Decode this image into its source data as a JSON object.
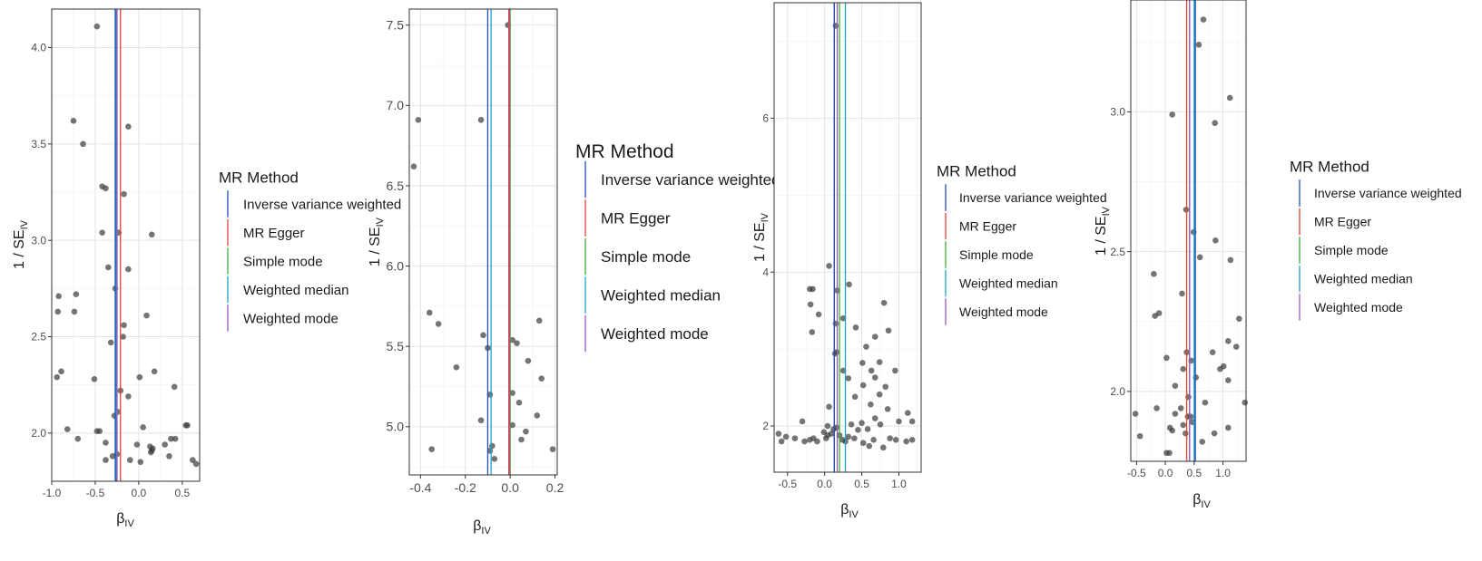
{
  "legend": {
    "title": "MR Method",
    "entries": [
      {
        "name": "Inverse variance weighted",
        "color": "#1f4fbf"
      },
      {
        "name": "MR Egger",
        "color": "#e0453a"
      },
      {
        "name": "Simple mode",
        "color": "#3fae3c"
      },
      {
        "name": "Weighted median",
        "color": "#1ea1c8"
      },
      {
        "name": "Weighted mode",
        "color": "#9b57c2"
      }
    ]
  },
  "axes": {
    "y_prefix": "1 / SE",
    "y_sub": "IV",
    "x_prefix": "β",
    "x_sub": "IV"
  },
  "chart_data": [
    {
      "type": "scatter",
      "xlim": [
        -1.0,
        0.7
      ],
      "ylim": [
        1.75,
        4.2
      ],
      "xticks": [
        "-1.0",
        "-0.5",
        "0.0",
        "0.5"
      ],
      "xtick_values": [
        -1.0,
        -0.5,
        0.0,
        0.5
      ],
      "yticks": [
        "2.0",
        "2.5",
        "3.0",
        "3.5",
        "4.0"
      ],
      "ytick_values": [
        2.0,
        2.5,
        3.0,
        3.5,
        4.0
      ],
      "grid": true,
      "method_lines": {
        "Inverse variance weighted": -0.27,
        "MR Egger": -0.21,
        "Simple mode": -0.25,
        "Weighted median": -0.26,
        "Weighted mode": -0.25
      },
      "points": [
        [
          -0.48,
          4.11
        ],
        [
          -0.75,
          3.62
        ],
        [
          -0.64,
          3.5
        ],
        [
          -0.12,
          3.59
        ],
        [
          -0.42,
          3.28
        ],
        [
          -0.38,
          3.27
        ],
        [
          -0.17,
          3.24
        ],
        [
          -0.42,
          3.04
        ],
        [
          -0.23,
          3.04
        ],
        [
          0.15,
          3.03
        ],
        [
          -0.35,
          2.86
        ],
        [
          -0.12,
          2.85
        ],
        [
          -0.27,
          2.75
        ],
        [
          -0.92,
          2.71
        ],
        [
          -0.72,
          2.72
        ],
        [
          -0.93,
          2.63
        ],
        [
          -0.74,
          2.63
        ],
        [
          0.09,
          2.61
        ],
        [
          -0.17,
          2.56
        ],
        [
          -0.18,
          2.5
        ],
        [
          -0.32,
          2.47
        ],
        [
          -0.89,
          2.32
        ],
        [
          0.18,
          2.32
        ],
        [
          -0.94,
          2.29
        ],
        [
          -0.51,
          2.28
        ],
        [
          0.01,
          2.29
        ],
        [
          0.41,
          2.24
        ],
        [
          -0.21,
          2.22
        ],
        [
          -0.12,
          2.19
        ],
        [
          -0.24,
          2.11
        ],
        [
          -0.28,
          2.09
        ],
        [
          0.05,
          2.03
        ],
        [
          0.54,
          2.04
        ],
        [
          0.56,
          2.04
        ],
        [
          -0.82,
          2.02
        ],
        [
          -0.48,
          2.01
        ],
        [
          -0.45,
          2.01
        ],
        [
          -0.7,
          1.97
        ],
        [
          0.37,
          1.97
        ],
        [
          0.42,
          1.97
        ],
        [
          -0.38,
          1.95
        ],
        [
          -0.02,
          1.94
        ],
        [
          0.3,
          1.94
        ],
        [
          0.13,
          1.93
        ],
        [
          0.16,
          1.92
        ],
        [
          0.14,
          1.9
        ],
        [
          0.15,
          1.91
        ],
        [
          -0.25,
          1.89
        ],
        [
          -0.1,
          1.86
        ],
        [
          0.35,
          1.88
        ],
        [
          -0.3,
          1.88
        ],
        [
          -0.38,
          1.86
        ],
        [
          0.02,
          1.85
        ],
        [
          0.62,
          1.86
        ],
        [
          0.66,
          1.84
        ]
      ]
    },
    {
      "type": "scatter",
      "xlim": [
        -0.45,
        0.21
      ],
      "ylim": [
        4.7,
        7.6
      ],
      "xticks": [
        "-0.4",
        "-0.2",
        "0.0",
        "0.2"
      ],
      "xtick_values": [
        -0.4,
        -0.2,
        0.0,
        0.2
      ],
      "yticks": [
        "5.0",
        "5.5",
        "6.0",
        "6.5",
        "7.0",
        "7.5"
      ],
      "ytick_values": [
        5.0,
        5.5,
        6.0,
        6.5,
        7.0,
        7.5
      ],
      "grid": true,
      "method_lines": {
        "Inverse variance weighted": -0.1,
        "MR Egger": -0.003,
        "Simple mode": 0.0,
        "Weighted median": -0.085,
        "Weighted mode": -0.006
      },
      "points": [
        [
          -0.01,
          7.5
        ],
        [
          -0.41,
          6.91
        ],
        [
          -0.13,
          6.91
        ],
        [
          -0.43,
          6.62
        ],
        [
          -0.36,
          5.71
        ],
        [
          -0.32,
          5.64
        ],
        [
          0.13,
          5.66
        ],
        [
          -0.12,
          5.57
        ],
        [
          -0.1,
          5.49
        ],
        [
          0.01,
          5.54
        ],
        [
          0.03,
          5.52
        ],
        [
          0.08,
          5.41
        ],
        [
          -0.24,
          5.37
        ],
        [
          0.14,
          5.3
        ],
        [
          -0.09,
          5.2
        ],
        [
          0.01,
          5.21
        ],
        [
          0.04,
          5.15
        ],
        [
          0.12,
          5.07
        ],
        [
          -0.13,
          5.04
        ],
        [
          0.01,
          5.01
        ],
        [
          0.07,
          4.97
        ],
        [
          0.05,
          4.92
        ],
        [
          -0.35,
          4.86
        ],
        [
          -0.09,
          4.85
        ],
        [
          -0.08,
          4.88
        ],
        [
          -0.07,
          4.8
        ],
        [
          0.19,
          4.86
        ]
      ]
    },
    {
      "type": "scatter",
      "xlim": [
        -0.68,
        1.3
      ],
      "ylim": [
        1.4,
        7.5
      ],
      "xticks": [
        "-0.5",
        "0.0",
        "0.5",
        "1.0"
      ],
      "xtick_values": [
        -0.5,
        0.0,
        0.5,
        1.0
      ],
      "yticks": [
        "2",
        "4",
        "6"
      ],
      "ytick_values": [
        2,
        4,
        6
      ],
      "grid": true,
      "method_lines": {
        "Inverse variance weighted": 0.13,
        "MR Egger": 0.13,
        "Simple mode": 0.2,
        "Weighted median": 0.28,
        "Weighted mode": 0.17
      },
      "points": [
        [
          0.15,
          7.2
        ],
        [
          0.06,
          4.08
        ],
        [
          -0.2,
          3.78
        ],
        [
          -0.16,
          3.78
        ],
        [
          0.17,
          3.76
        ],
        [
          0.33,
          3.84
        ],
        [
          -0.08,
          3.45
        ],
        [
          0.8,
          3.6
        ],
        [
          -0.19,
          3.58
        ],
        [
          0.25,
          3.4
        ],
        [
          0.15,
          3.33
        ],
        [
          -0.17,
          3.22
        ],
        [
          0.42,
          3.28
        ],
        [
          0.56,
          3.03
        ],
        [
          0.68,
          3.16
        ],
        [
          0.86,
          3.24
        ],
        [
          0.14,
          2.94
        ],
        [
          0.16,
          2.96
        ],
        [
          0.51,
          2.82
        ],
        [
          0.74,
          2.83
        ],
        [
          0.63,
          2.72
        ],
        [
          0.25,
          2.72
        ],
        [
          0.32,
          2.62
        ],
        [
          0.68,
          2.63
        ],
        [
          0.95,
          2.72
        ],
        [
          0.52,
          2.53
        ],
        [
          0.82,
          2.51
        ],
        [
          0.74,
          2.41
        ],
        [
          0.41,
          2.38
        ],
        [
          0.62,
          2.28
        ],
        [
          0.85,
          2.22
        ],
        [
          0.68,
          2.1
        ],
        [
          1.12,
          2.17
        ],
        [
          0.06,
          2.25
        ],
        [
          0.36,
          2.02
        ],
        [
          0.5,
          2.04
        ],
        [
          0.75,
          2.02
        ],
        [
          1.0,
          2.06
        ],
        [
          1.18,
          2.06
        ],
        [
          -0.3,
          2.06
        ],
        [
          -0.52,
          1.86
        ],
        [
          -0.62,
          1.9
        ],
        [
          -0.58,
          1.8
        ],
        [
          -0.4,
          1.84
        ],
        [
          -0.15,
          1.84
        ],
        [
          -0.1,
          1.8
        ],
        [
          -0.01,
          1.92
        ],
        [
          0.04,
          1.88
        ],
        [
          0.09,
          1.9
        ],
        [
          0.12,
          1.96
        ],
        [
          0.2,
          1.88
        ],
        [
          0.24,
          1.82
        ],
        [
          0.28,
          1.8
        ],
        [
          0.4,
          1.84
        ],
        [
          0.52,
          1.78
        ],
        [
          0.6,
          1.74
        ],
        [
          0.66,
          1.82
        ],
        [
          0.79,
          1.72
        ],
        [
          0.88,
          1.84
        ],
        [
          0.96,
          1.82
        ],
        [
          1.1,
          1.8
        ],
        [
          1.18,
          1.82
        ],
        [
          -0.2,
          1.82
        ],
        [
          -0.27,
          1.8
        ],
        [
          0.32,
          1.86
        ],
        [
          0.16,
          1.98
        ],
        [
          0.02,
          1.84
        ],
        [
          0.45,
          1.95
        ],
        [
          0.58,
          1.96
        ],
        [
          0.04,
          2.0
        ]
      ]
    },
    {
      "type": "scatter",
      "xlim": [
        -0.6,
        1.4
      ],
      "ylim": [
        1.75,
        3.4
      ],
      "xticks": [
        "-0.5",
        "0.0",
        "0.5",
        "1.0"
      ],
      "xtick_values": [
        -0.5,
        0.0,
        0.5,
        1.0
      ],
      "yticks": [
        "2.0",
        "2.5",
        "3.0"
      ],
      "ytick_values": [
        2.0,
        2.5,
        3.0
      ],
      "grid": true,
      "method_lines": {
        "Inverse variance weighted": 0.52,
        "MR Egger": 0.37,
        "Simple mode": 0.42,
        "Weighted median": 0.5,
        "Weighted mode": 0.42
      },
      "points": [
        [
          0.66,
          3.33
        ],
        [
          0.58,
          3.24
        ],
        [
          1.12,
          3.05
        ],
        [
          0.12,
          2.99
        ],
        [
          0.86,
          2.96
        ],
        [
          0.36,
          2.65
        ],
        [
          0.49,
          2.57
        ],
        [
          0.87,
          2.54
        ],
        [
          0.6,
          2.48
        ],
        [
          1.13,
          2.47
        ],
        [
          -0.2,
          2.42
        ],
        [
          0.29,
          2.35
        ],
        [
          -0.11,
          2.28
        ],
        [
          -0.18,
          2.27
        ],
        [
          1.28,
          2.26
        ],
        [
          1.09,
          2.18
        ],
        [
          1.23,
          2.16
        ],
        [
          0.82,
          2.14
        ],
        [
          0.37,
          2.14
        ],
        [
          0.02,
          2.12
        ],
        [
          0.45,
          2.11
        ],
        [
          0.95,
          2.08
        ],
        [
          0.31,
          2.08
        ],
        [
          1.01,
          2.09
        ],
        [
          0.53,
          2.05
        ],
        [
          1.09,
          2.04
        ],
        [
          0.17,
          2.02
        ],
        [
          0.4,
          1.98
        ],
        [
          1.38,
          1.96
        ],
        [
          0.69,
          1.96
        ],
        [
          -0.15,
          1.94
        ],
        [
          0.27,
          1.94
        ],
        [
          0.17,
          1.92
        ],
        [
          -0.52,
          1.92
        ],
        [
          0.39,
          1.91
        ],
        [
          0.44,
          1.91
        ],
        [
          0.47,
          1.89
        ],
        [
          0.31,
          1.88
        ],
        [
          0.08,
          1.87
        ],
        [
          0.12,
          1.86
        ],
        [
          0.35,
          1.85
        ],
        [
          1.09,
          1.87
        ],
        [
          -0.44,
          1.84
        ],
        [
          0.85,
          1.85
        ],
        [
          0.64,
          1.82
        ],
        [
          0.02,
          1.78
        ],
        [
          0.07,
          1.78
        ]
      ]
    }
  ]
}
